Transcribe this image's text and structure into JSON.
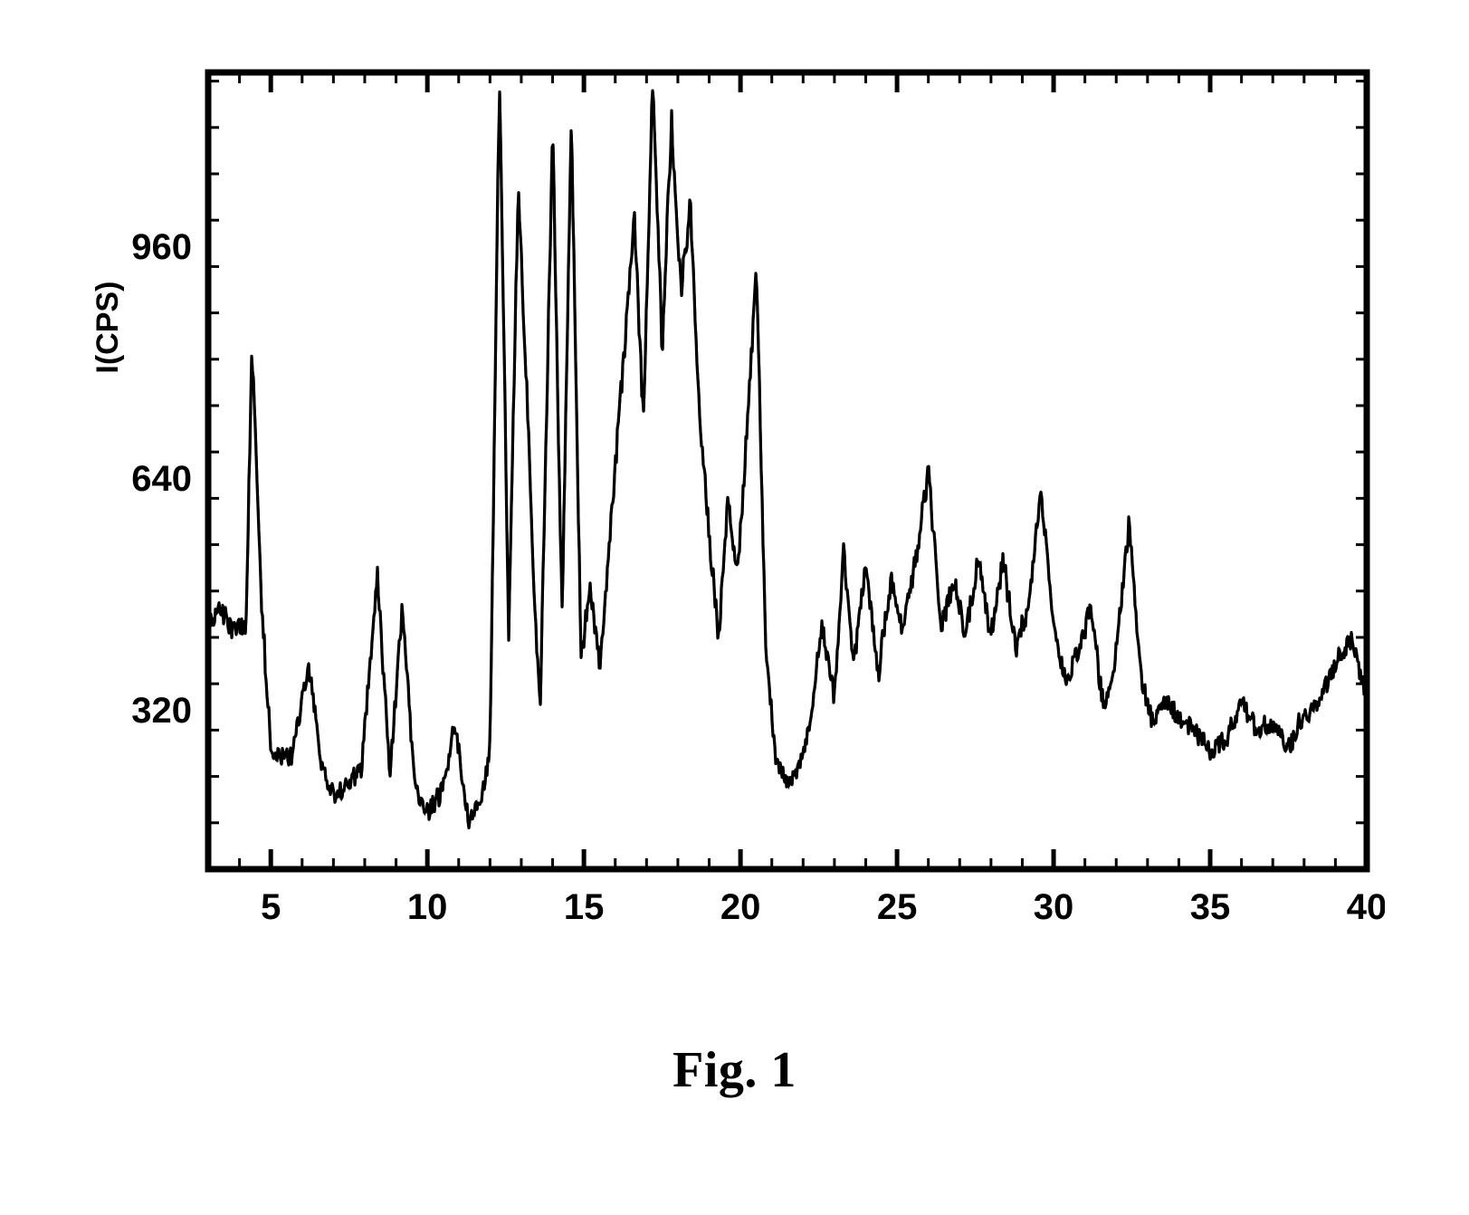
{
  "caption": "Fig. 1",
  "chart": {
    "type": "line",
    "ylabel": "I(CPS)",
    "ylabel_fontsize": 34,
    "tick_fontsize": 40,
    "xlim": [
      3,
      40
    ],
    "ylim": [
      100,
      1200
    ],
    "xticks": [
      5,
      10,
      15,
      20,
      25,
      30,
      35,
      40
    ],
    "yticks": [
      320,
      640,
      960
    ],
    "frame_color": "#000000",
    "frame_width": 7,
    "tick_len_major": 22,
    "tick_len_minor": 12,
    "x_minor_step": 1,
    "y_minor_count_between": 4,
    "background_color": "#ffffff",
    "line_color": "#000000",
    "line_width": 3.2,
    "noise_amp": 22,
    "noise_seed": 1234567,
    "noise_density": 6,
    "anchors": [
      [
        3.0,
        440
      ],
      [
        3.4,
        460
      ],
      [
        3.8,
        430
      ],
      [
        4.2,
        440
      ],
      [
        4.4,
        810
      ],
      [
        4.7,
        470
      ],
      [
        5.0,
        270
      ],
      [
        5.3,
        250
      ],
      [
        5.7,
        260
      ],
      [
        6.2,
        380
      ],
      [
        6.6,
        250
      ],
      [
        7.0,
        200
      ],
      [
        7.5,
        220
      ],
      [
        7.9,
        240
      ],
      [
        8.4,
        510
      ],
      [
        8.8,
        230
      ],
      [
        9.2,
        460
      ],
      [
        9.6,
        210
      ],
      [
        10.0,
        180
      ],
      [
        10.4,
        200
      ],
      [
        10.9,
        300
      ],
      [
        11.3,
        170
      ],
      [
        11.7,
        190
      ],
      [
        12.0,
        260
      ],
      [
        12.3,
        1200
      ],
      [
        12.6,
        420
      ],
      [
        12.9,
        1040
      ],
      [
        13.2,
        740
      ],
      [
        13.4,
        480
      ],
      [
        13.6,
        320
      ],
      [
        14.0,
        1120
      ],
      [
        14.3,
        450
      ],
      [
        14.6,
        1130
      ],
      [
        14.9,
        400
      ],
      [
        15.2,
        480
      ],
      [
        15.5,
        380
      ],
      [
        15.9,
        600
      ],
      [
        16.3,
        820
      ],
      [
        16.6,
        1000
      ],
      [
        16.9,
        720
      ],
      [
        17.2,
        1190
      ],
      [
        17.5,
        820
      ],
      [
        17.8,
        1130
      ],
      [
        18.1,
        900
      ],
      [
        18.4,
        1010
      ],
      [
        18.7,
        730
      ],
      [
        19.0,
        560
      ],
      [
        19.3,
        420
      ],
      [
        19.6,
        610
      ],
      [
        19.9,
        500
      ],
      [
        20.2,
        700
      ],
      [
        20.5,
        940
      ],
      [
        20.8,
        420
      ],
      [
        21.1,
        260
      ],
      [
        21.4,
        220
      ],
      [
        21.8,
        230
      ],
      [
        22.2,
        300
      ],
      [
        22.6,
        440
      ],
      [
        23.0,
        340
      ],
      [
        23.3,
        540
      ],
      [
        23.6,
        380
      ],
      [
        24.0,
        520
      ],
      [
        24.4,
        370
      ],
      [
        24.8,
        500
      ],
      [
        25.2,
        430
      ],
      [
        25.6,
        530
      ],
      [
        26.0,
        650
      ],
      [
        26.4,
        430
      ],
      [
        26.8,
        500
      ],
      [
        27.2,
        420
      ],
      [
        27.6,
        530
      ],
      [
        28.0,
        420
      ],
      [
        28.4,
        530
      ],
      [
        28.8,
        400
      ],
      [
        29.2,
        470
      ],
      [
        29.6,
        620
      ],
      [
        30.0,
        430
      ],
      [
        30.4,
        360
      ],
      [
        30.8,
        400
      ],
      [
        31.2,
        460
      ],
      [
        31.6,
        320
      ],
      [
        32.0,
        400
      ],
      [
        32.4,
        580
      ],
      [
        32.8,
        360
      ],
      [
        33.2,
        300
      ],
      [
        33.6,
        330
      ],
      [
        34.0,
        310
      ],
      [
        34.5,
        290
      ],
      [
        35.0,
        260
      ],
      [
        35.5,
        280
      ],
      [
        36.0,
        330
      ],
      [
        36.5,
        290
      ],
      [
        37.0,
        300
      ],
      [
        37.5,
        270
      ],
      [
        38.0,
        310
      ],
      [
        38.5,
        330
      ],
      [
        39.0,
        380
      ],
      [
        39.5,
        420
      ],
      [
        40.0,
        340
      ]
    ]
  }
}
